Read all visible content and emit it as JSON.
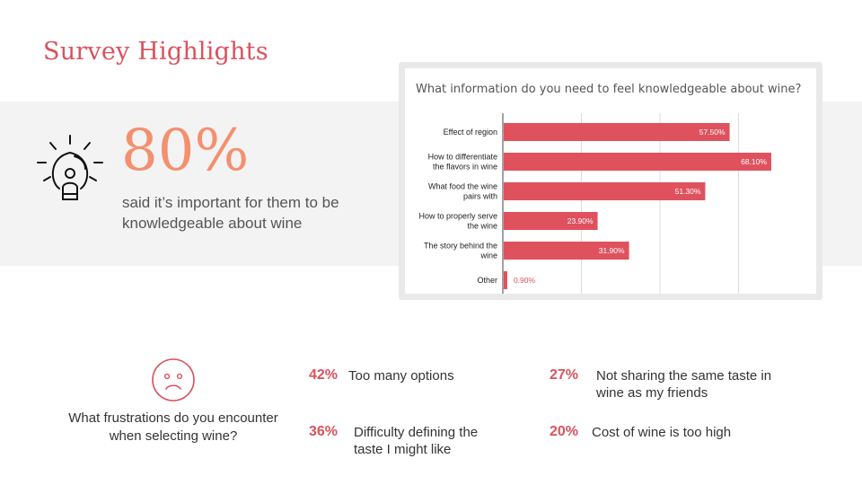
{
  "slide": {
    "title": "Survey Highlights"
  },
  "highlight": {
    "icon": "lightbulb-person-icon",
    "value": "80%",
    "caption": "said it’s important for them to be knowledgeable about wine"
  },
  "chart_data": {
    "type": "bar",
    "orientation": "horizontal",
    "title": "What information do you need to feel knowledgeable about wine?",
    "categories": [
      [
        "Effect of region"
      ],
      [
        "How to  differentiate",
        "the flavors in wine"
      ],
      [
        "What food the wine",
        "pairs with"
      ],
      [
        "How to properly serve",
        "the wine"
      ],
      [
        "The story behind the",
        "wine"
      ],
      [
        "Other"
      ]
    ],
    "values": [
      57.5,
      68.1,
      51.3,
      23.9,
      31.9,
      0.9
    ],
    "data_labels": [
      "57.50%",
      "68.10%",
      "51.30%",
      "23.90%",
      "31.90%",
      "0.90%"
    ],
    "xlim": [
      0,
      80
    ],
    "grid": true,
    "bar_color": "#e0515e"
  },
  "frustrations": {
    "icon": "sad-face-icon",
    "question": "What frustrations do you encounter when selecting wine?",
    "items": [
      {
        "pct": "42%",
        "text": "Too many options"
      },
      {
        "pct": "36%",
        "text": "Difficulty defining the taste I might like"
      },
      {
        "pct": "27%",
        "text": "Not sharing the same taste in wine as my friends"
      },
      {
        "pct": "20%",
        "text": "Cost of wine is too high"
      }
    ]
  },
  "colors": {
    "accent": "#d9525e",
    "stat": "#f4906f",
    "band": "#f3f3f3"
  }
}
